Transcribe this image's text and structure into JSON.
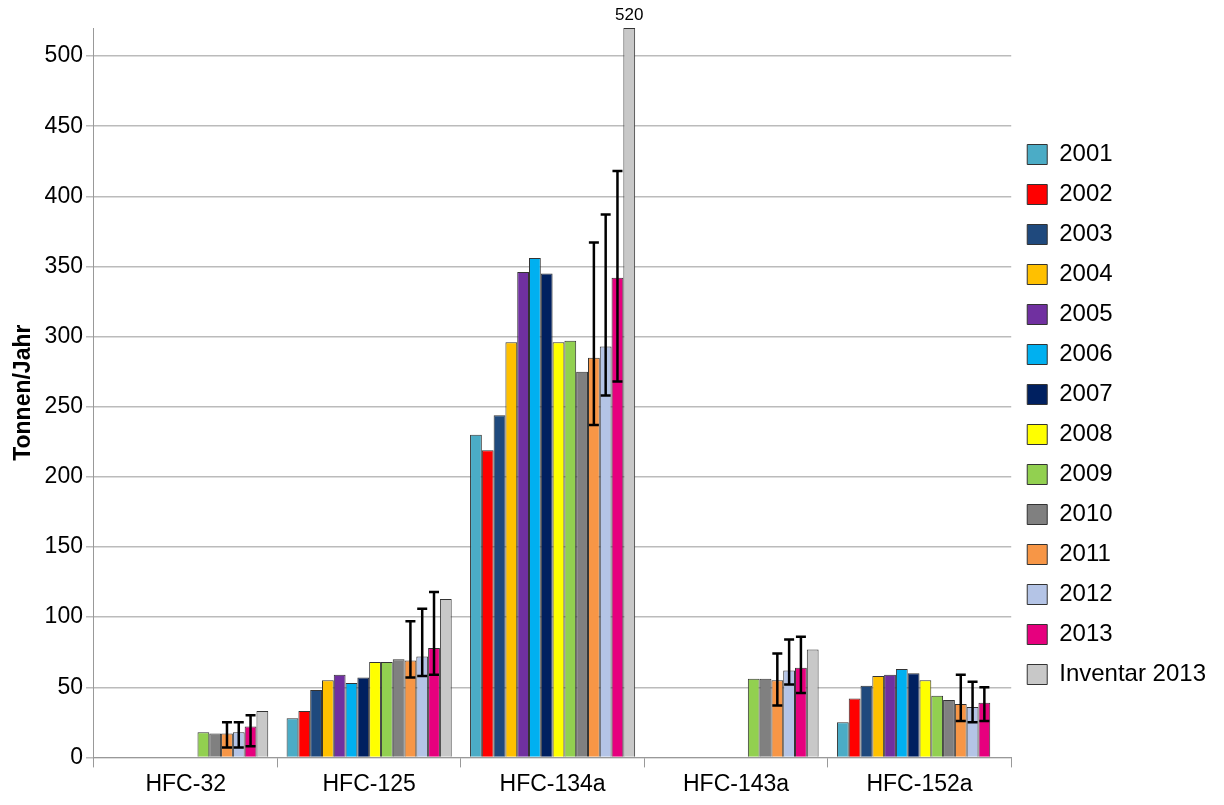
{
  "chart_data": {
    "type": "bar",
    "categories": [
      "HFC-32",
      "HFC-125",
      "HFC-134a",
      "HFC-143a",
      "HFC-152a"
    ],
    "ylabel": "Tonnen/Jahr",
    "ylim": [
      0,
      520
    ],
    "yticks": [
      0,
      50,
      100,
      150,
      200,
      250,
      300,
      350,
      400,
      450,
      500
    ],
    "grid": "y",
    "legend": "right",
    "series": [
      {
        "name": "2001",
        "color": "#4bacc6",
        "values": [
          null,
          28,
          230,
          null,
          25
        ]
      },
      {
        "name": "2002",
        "color": "#ff0000",
        "values": [
          null,
          33,
          219,
          null,
          42
        ]
      },
      {
        "name": "2003",
        "color": "#1f497d",
        "values": [
          null,
          48,
          244,
          null,
          51
        ]
      },
      {
        "name": "2004",
        "color": "#ffc000",
        "values": [
          null,
          55,
          296,
          null,
          58
        ]
      },
      {
        "name": "2005",
        "color": "#7030a0",
        "values": [
          null,
          59,
          346,
          null,
          59
        ]
      },
      {
        "name": "2006",
        "color": "#00b0f0",
        "values": [
          null,
          53,
          356,
          null,
          63
        ]
      },
      {
        "name": "2007",
        "color": "#002060",
        "values": [
          null,
          57,
          345,
          null,
          60
        ]
      },
      {
        "name": "2008",
        "color": "#ffff00",
        "values": [
          null,
          68,
          296,
          null,
          55
        ]
      },
      {
        "name": "2009",
        "color": "#92d050",
        "values": [
          18,
          68,
          297,
          56,
          44
        ]
      },
      {
        "name": "2010",
        "color": "#808080",
        "values": [
          17,
          70,
          275,
          56,
          41
        ]
      },
      {
        "name": "2011",
        "color": "#f79646",
        "values": [
          17,
          69,
          285,
          55,
          38
        ],
        "errors": [
          [
            7,
            25
          ],
          [
            57,
            97
          ],
          [
            237,
            367
          ],
          [
            37,
            74
          ],
          [
            26,
            59
          ]
        ]
      },
      {
        "name": "2012",
        "color": "#b4c4e6",
        "values": [
          18,
          72,
          293,
          62,
          36
        ],
        "errors": [
          [
            7,
            25
          ],
          [
            58,
            106
          ],
          [
            258,
            387
          ],
          [
            52,
            84
          ],
          [
            25,
            54
          ]
        ]
      },
      {
        "name": "2013",
        "color": "#e6007e",
        "values": [
          22,
          78,
          342,
          64,
          39
        ],
        "errors": [
          [
            8,
            30
          ],
          [
            59,
            118
          ],
          [
            268,
            418
          ],
          [
            46,
            86
          ],
          [
            26,
            50
          ]
        ]
      },
      {
        "name": "Inventar 2013",
        "color": "#c8c8c8",
        "values": [
          33,
          113,
          520,
          77,
          null
        ],
        "value_labels": [
          null,
          null,
          "520",
          null,
          null
        ]
      }
    ]
  }
}
